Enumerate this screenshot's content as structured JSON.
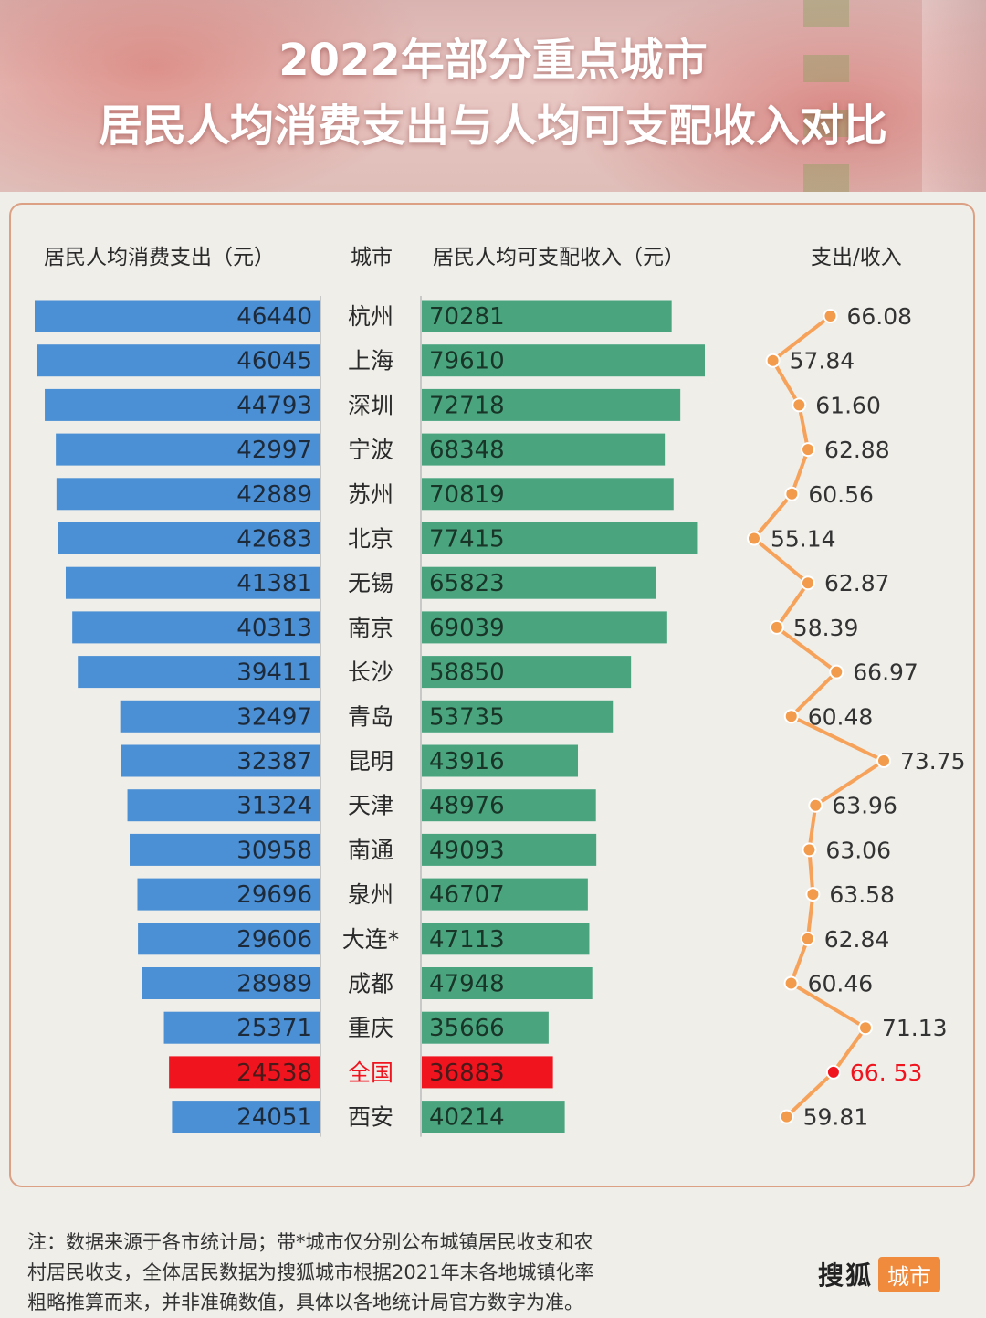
{
  "title": {
    "line1": "2022年部分重点城市",
    "line2": "居民人均消费支出与人均可支配收入对比"
  },
  "headers": {
    "expenditure": "居民人均消费支出（元）",
    "city": "城市",
    "income": "居民人均可支配收入（元）",
    "ratio": "支出/收入"
  },
  "colors": {
    "expenditure_bar": "#4b8fd4",
    "income_bar": "#4aa57f",
    "highlight": "#f0141f",
    "ratio_line": "#f6a25a",
    "ratio_marker": "#f39b4c",
    "panel_border": "#dca084"
  },
  "chart_data": {
    "type": "bar",
    "categories": [
      "杭州",
      "上海",
      "深圳",
      "宁波",
      "苏州",
      "北京",
      "无锡",
      "南京",
      "长沙",
      "青岛",
      "昆明",
      "天津",
      "南通",
      "泉州",
      "大连*",
      "成都",
      "重庆",
      "全国",
      "西安"
    ],
    "series": [
      {
        "values": [
          46440,
          46045,
          44793,
          42997,
          42889,
          42683,
          41381,
          40313,
          39411,
          32497,
          32387,
          31324,
          30958,
          29696,
          29606,
          28989,
          25371,
          24538,
          24051
        ]
      },
      {
        "values": [
          70281,
          79610,
          72718,
          68348,
          70819,
          77415,
          65823,
          69039,
          58850,
          53735,
          43916,
          48976,
          49093,
          46707,
          47113,
          47948,
          35666,
          36883,
          40214
        ]
      },
      {
        "values": [
          66.08,
          57.84,
          61.6,
          62.88,
          60.56,
          55.14,
          62.87,
          58.39,
          66.97,
          60.48,
          73.75,
          63.96,
          63.06,
          63.58,
          62.84,
          60.46,
          71.13,
          66.53,
          59.81
        ]
      }
    ],
    "ratio_labels": [
      "66.08",
      "57.84",
      "61.60",
      "62.88",
      "60.56",
      "55.14",
      "62.87",
      "58.39",
      "66.97",
      "60.48",
      "73.75",
      "63.96",
      "63.06",
      "63.58",
      "62.84",
      "60.46",
      "71.13",
      "66. 53",
      "59.81"
    ],
    "highlight_category": "全国",
    "expenditure_range": [
      0,
      50000
    ],
    "income_range": [
      0,
      85000
    ],
    "ratio_range": [
      55,
      74
    ]
  },
  "note": {
    "line1": "注：数据来源于各市统计局；带*城市仅分别公布城镇居民收支和农",
    "line2": "村居民收支，全体居民数据为搜狐城市根据2021年末各地城镇化率",
    "line3": "粗略推算而来，并非准确数值，具体以各地统计局官方数字为准。"
  },
  "brand": {
    "name": "搜狐",
    "tag": "城市"
  }
}
